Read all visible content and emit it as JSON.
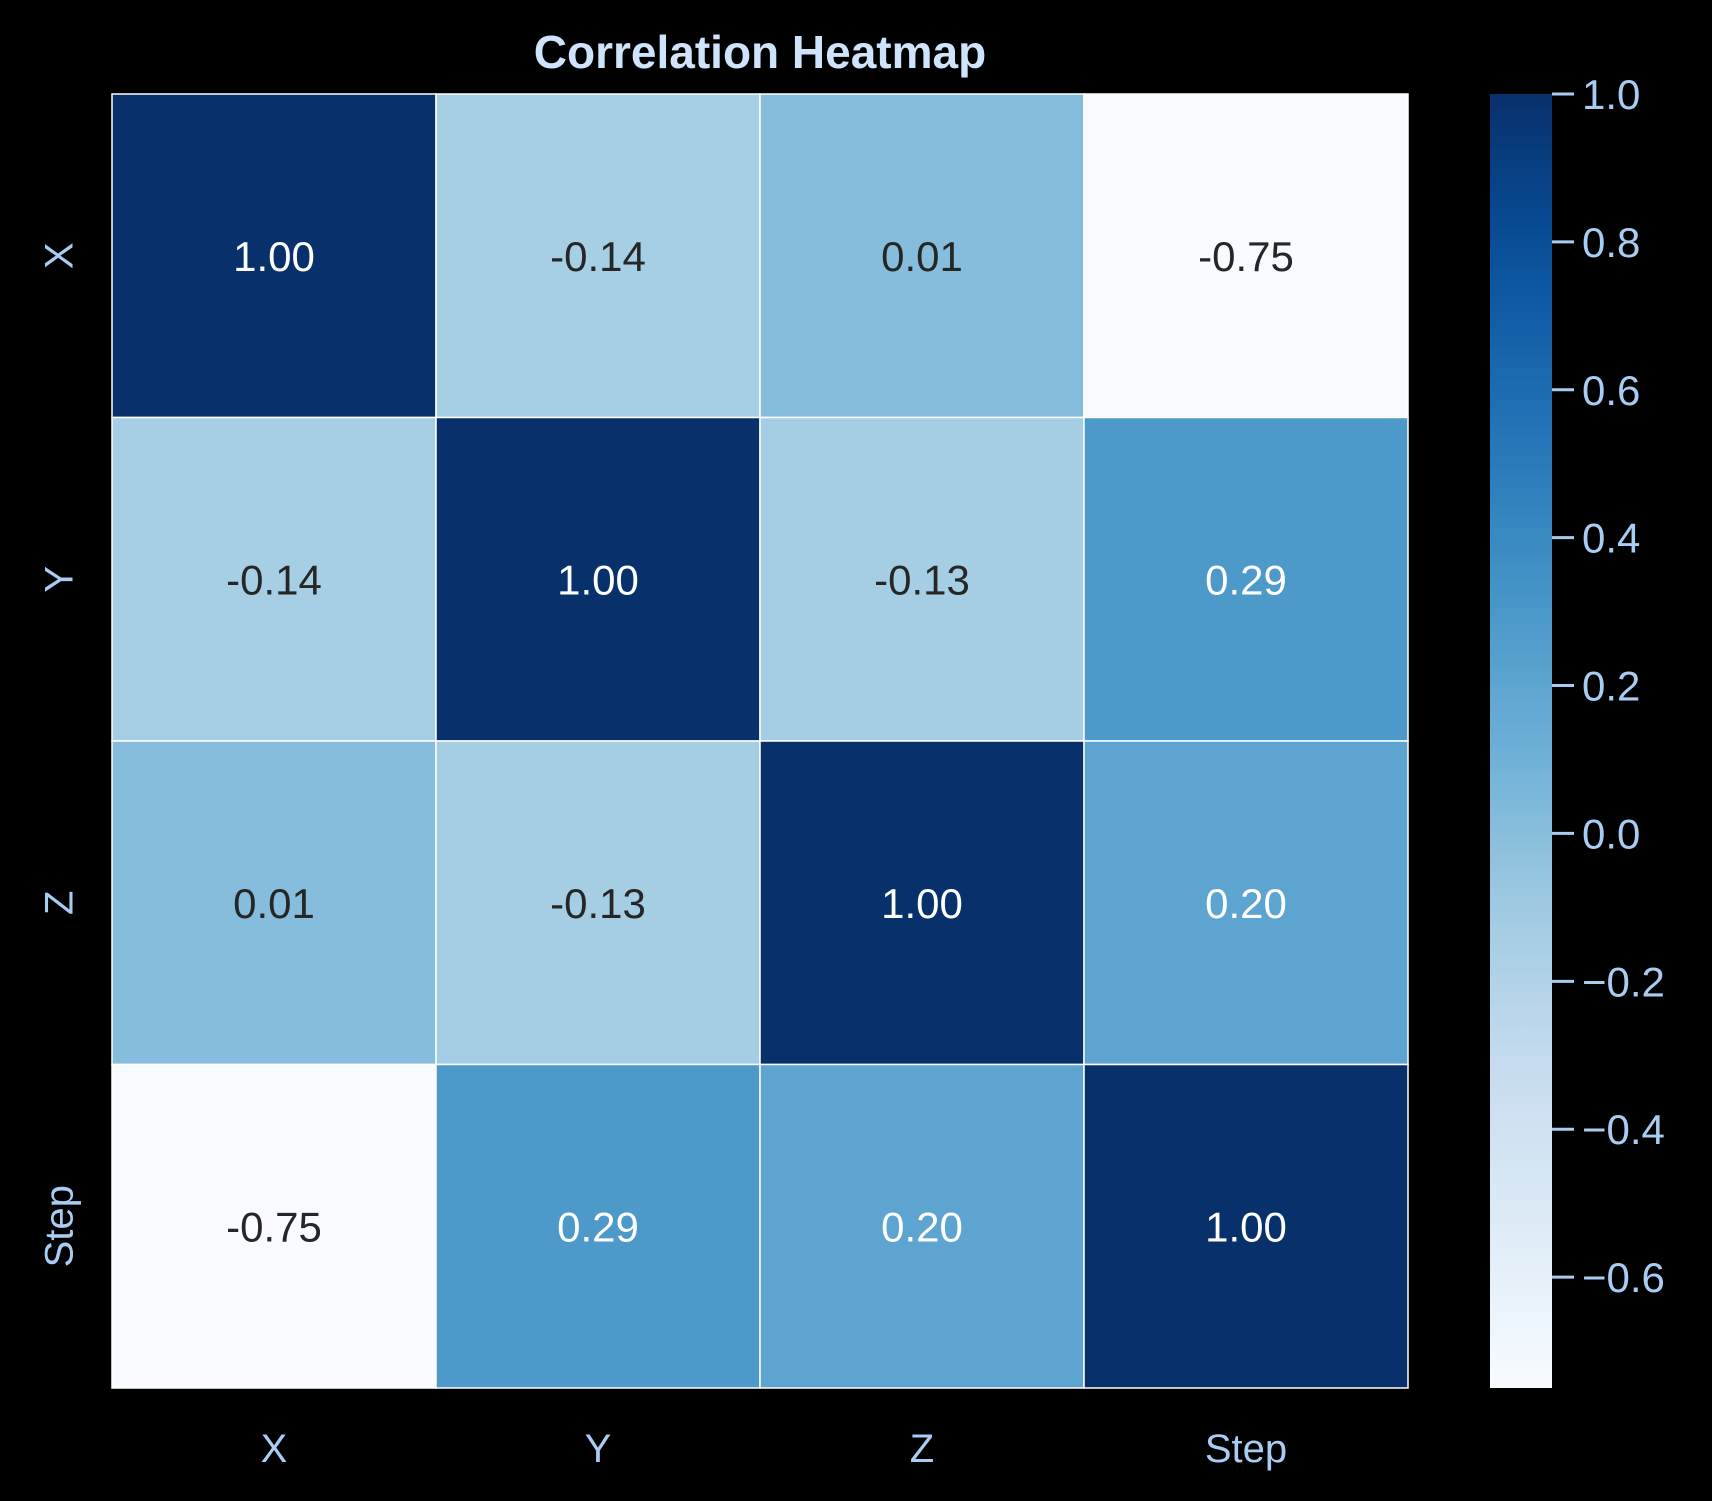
{
  "chart_data": {
    "type": "heatmap",
    "title": "Correlation Heatmap",
    "x_labels": [
      "X",
      "Y",
      "Z",
      "Step"
    ],
    "y_labels": [
      "X",
      "Y",
      "Z",
      "Step"
    ],
    "values": [
      [
        1.0,
        -0.14,
        0.01,
        -0.75
      ],
      [
        -0.14,
        1.0,
        -0.13,
        0.29
      ],
      [
        0.01,
        -0.13,
        1.0,
        0.2
      ],
      [
        -0.75,
        0.29,
        0.2,
        1.0
      ]
    ],
    "cell_labels": [
      [
        "1.00",
        "-0.14",
        "0.01",
        "-0.75"
      ],
      [
        "-0.14",
        "1.00",
        "-0.13",
        "0.29"
      ],
      [
        "0.01",
        "-0.13",
        "1.00",
        "0.20"
      ],
      [
        "-0.75",
        "0.29",
        "0.20",
        "1.00"
      ]
    ],
    "colormap": "Blues",
    "vmin": -0.75,
    "vmax": 1.0,
    "colorbar_ticks": [
      {
        "value": 1.0,
        "label": "1.0"
      },
      {
        "value": 0.8,
        "label": "0.8"
      },
      {
        "value": 0.6,
        "label": "0.6"
      },
      {
        "value": 0.4,
        "label": "0.4"
      },
      {
        "value": 0.2,
        "label": "0.2"
      },
      {
        "value": 0.0,
        "label": "0.0"
      },
      {
        "value": -0.2,
        "label": "−0.2"
      },
      {
        "value": -0.4,
        "label": "−0.4"
      },
      {
        "value": -0.6,
        "label": "−0.6"
      }
    ],
    "colorbar_location": "right",
    "grid": false
  },
  "colors": {
    "background": "#000000",
    "title_text": "#cfe3fb",
    "tick_text": "#a9cdf2",
    "cell_border": "#ffffff",
    "dark_annotation": "#262626",
    "light_annotation": "#ffffff"
  }
}
